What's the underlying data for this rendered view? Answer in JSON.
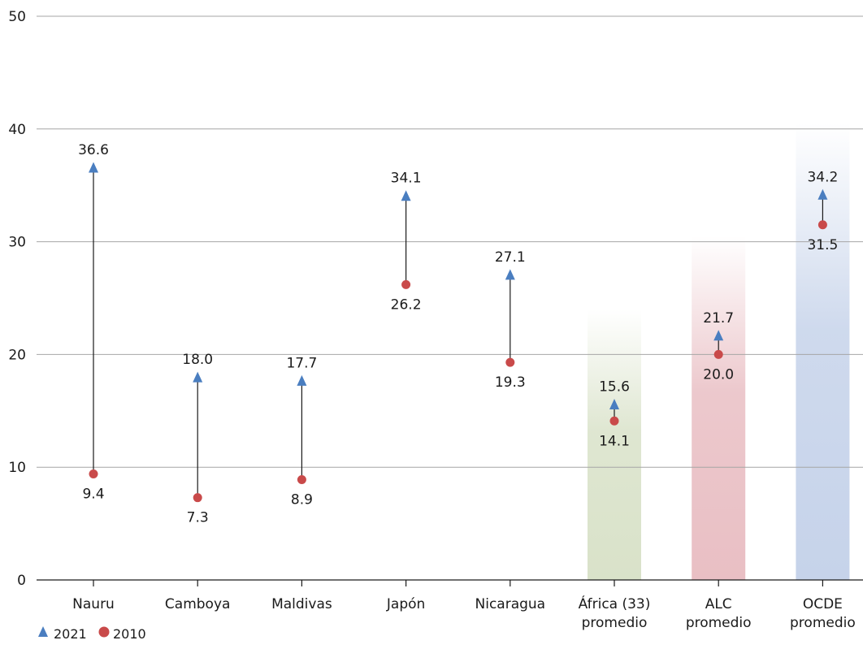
{
  "chart_data": {
    "type": "scatter",
    "categories": [
      "Nauru",
      "Camboya",
      "Maldivas",
      "Japón",
      "Nicaragua",
      "África (33)\npromedio",
      "ALC\npromedio",
      "OCDE\npromedio"
    ],
    "series": [
      {
        "name": "2021",
        "marker": "triangle",
        "color": "#4a7ec0",
        "values": [
          36.6,
          18.0,
          17.7,
          34.1,
          27.1,
          15.6,
          21.7,
          34.2
        ]
      },
      {
        "name": "2010",
        "marker": "circle",
        "color": "#c94a4a",
        "values": [
          9.4,
          7.3,
          8.9,
          26.2,
          19.3,
          14.1,
          20.0,
          31.5
        ]
      }
    ],
    "highlight_bands": [
      {
        "category": "África (33)\npromedio",
        "color": "#d9e2c9"
      },
      {
        "category": "ALC\npromedio",
        "color": "#e9bfc4"
      },
      {
        "category": "OCDE\npromedio",
        "color": "#c6d3ea"
      }
    ],
    "ylim": [
      0,
      50
    ],
    "yticks": [
      0,
      10,
      20,
      30,
      40,
      50
    ],
    "grid": true,
    "legend_position": "bottom-left",
    "title": "",
    "xlabel": "",
    "ylabel": ""
  }
}
